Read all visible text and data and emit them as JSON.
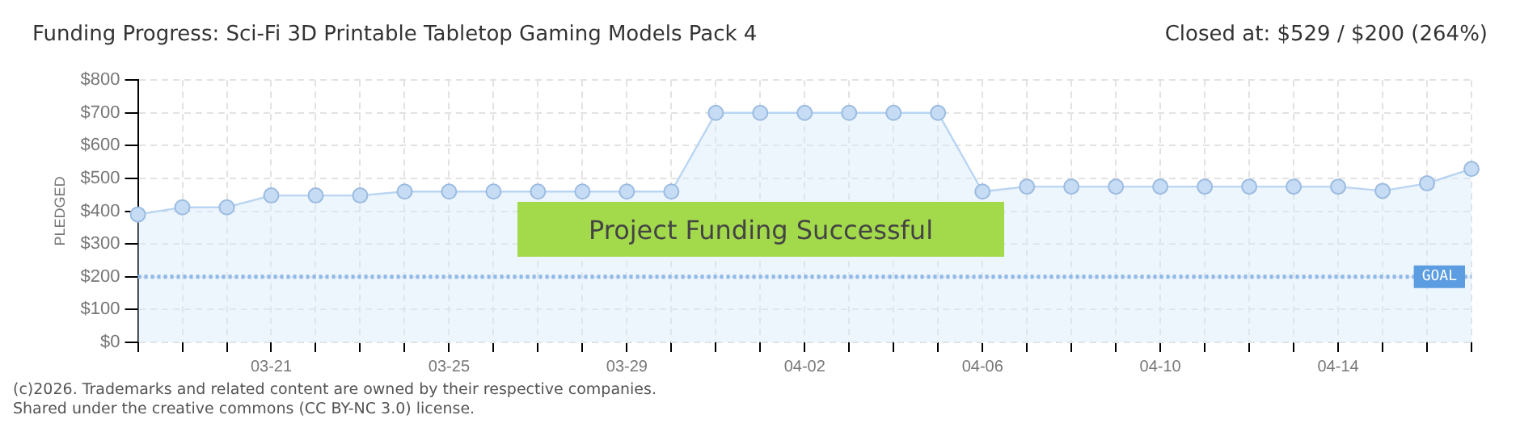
{
  "chart_data": {
    "type": "area",
    "title": "Funding Progress: Sci-Fi 3D Printable Tabletop Gaming Models Pack 4",
    "subtitle": "Closed at:  $529 /  $200 (264%)",
    "ylabel": "PLEDGED",
    "categories": [
      null,
      null,
      null,
      "03-21",
      null,
      null,
      null,
      "03-25",
      null,
      null,
      null,
      "03-29",
      null,
      null,
      null,
      "04-02",
      null,
      null,
      null,
      "04-06",
      null,
      null,
      null,
      "04-10",
      null,
      null,
      null,
      "04-14",
      null,
      null,
      null
    ],
    "series": [
      {
        "color": "#b9d5f2",
        "values": [
          390,
          412,
          412,
          448,
          448,
          448,
          460,
          460,
          460,
          460,
          460,
          460,
          460,
          700,
          700,
          700,
          700,
          700,
          700,
          460,
          475,
          475,
          475,
          475,
          475,
          475,
          475,
          475,
          462,
          485,
          529
        ]
      }
    ],
    "ylim": [
      0,
      800
    ],
    "yticks": [
      {
        "value": 0,
        "label": "$0"
      },
      {
        "value": 100,
        "label": "$100"
      },
      {
        "value": 200,
        "label": "$200"
      },
      {
        "value": 300,
        "label": "$300"
      },
      {
        "value": 400,
        "label": "$400"
      },
      {
        "value": 500,
        "label": "$500"
      },
      {
        "value": 600,
        "label": "$600"
      },
      {
        "value": 700,
        "label": "$700"
      },
      {
        "value": 800,
        "label": "$800"
      }
    ],
    "grid": true,
    "marker": "circle",
    "legend": false,
    "ref_lines": [
      {
        "axis": "y",
        "value": 200,
        "label": "GOAL",
        "color": "#8fb8e8",
        "line_style": "dotted"
      }
    ],
    "annotations": [
      "Project Funding Successful",
      "(c)2026. Trademarks and related content are owned by their respective companies.",
      "Shared under the creative commons (CC BY-NC 3.0) license."
    ]
  }
}
